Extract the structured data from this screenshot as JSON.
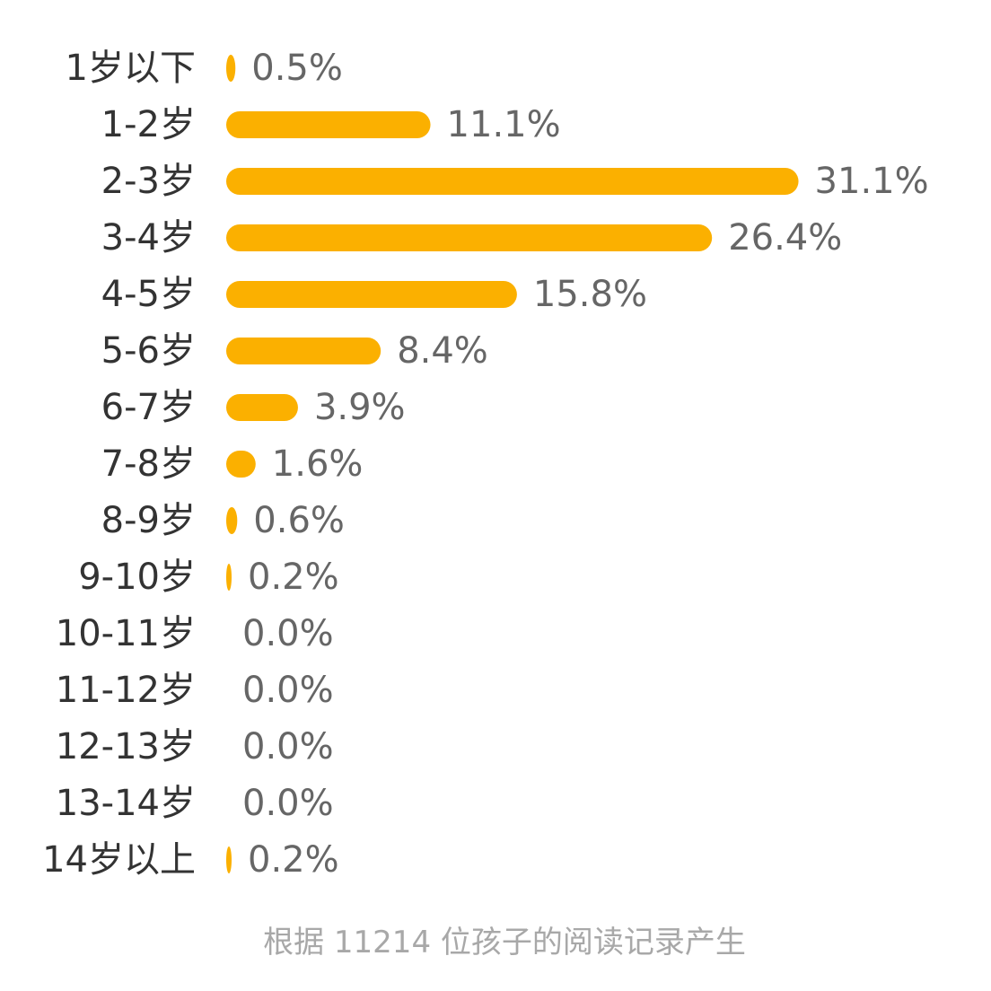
{
  "colors": {
    "bar": "#fbb000",
    "category_text": "#333333",
    "value_text": "#666666",
    "footnote_text": "#a8a8a8"
  },
  "chart_data": {
    "type": "bar",
    "orientation": "horizontal",
    "categories": [
      "1岁以下",
      "1-2岁",
      "2-3岁",
      "3-4岁",
      "4-5岁",
      "5-6岁",
      "6-7岁",
      "7-8岁",
      "8-9岁",
      "9-10岁",
      "10-11岁",
      "11-12岁",
      "12-13岁",
      "13-14岁",
      "14岁以上"
    ],
    "values": [
      0.5,
      11.1,
      31.1,
      26.4,
      15.8,
      8.4,
      3.9,
      1.6,
      0.6,
      0.2,
      0.0,
      0.0,
      0.0,
      0.0,
      0.2
    ],
    "value_labels": [
      "0.5%",
      "11.1%",
      "31.1%",
      "26.4%",
      "15.8%",
      "8.4%",
      "3.9%",
      "1.6%",
      "0.6%",
      "0.2%",
      "0.0%",
      "0.0%",
      "0.0%",
      "0.0%",
      "0.2%"
    ],
    "unit": "%",
    "grid": false,
    "legend": "none"
  },
  "footnote": "根据 11214 位孩子的阅读记录产生"
}
